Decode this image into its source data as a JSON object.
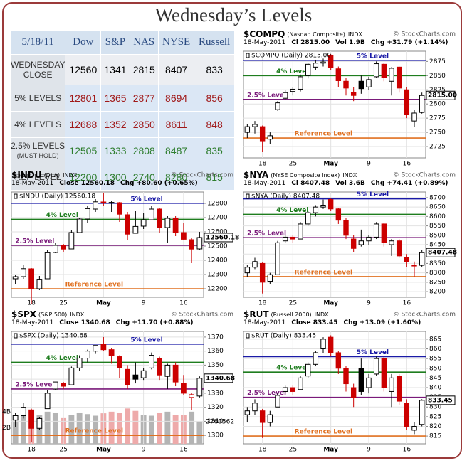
{
  "title": "Wednesday’s Levels",
  "table": {
    "header": [
      "5/18/11",
      "Dow",
      "S&P",
      "NAS",
      "NYSE",
      "Russell"
    ],
    "rows": [
      {
        "label": "WEDNESDAY CLOSE",
        "color": "#000000",
        "values": [
          "12560",
          "1341",
          "2815",
          "8407",
          "833"
        ]
      },
      {
        "label": "5% LEVELS",
        "color": "#a01818",
        "values": [
          "12801",
          "1365",
          "2877",
          "8694",
          "856"
        ]
      },
      {
        "label": "4% LEVELS",
        "color": "#a01818",
        "values": [
          "12688",
          "1352",
          "2850",
          "8611",
          "848"
        ]
      },
      {
        "label": "2.5% LEVELS",
        "note": "(MUST HOLD)",
        "color": "#2e7d2e",
        "values": [
          "12505",
          "1333",
          "2808",
          "8487",
          "835"
        ]
      },
      {
        "label": "REF LEVEL",
        "color": "#2e7d2e",
        "values": [
          "12200",
          "1300",
          "2740",
          "8280",
          "815"
        ]
      }
    ]
  },
  "chart_data": [
    {
      "type": "candlestick",
      "symbol": "$COMPQ",
      "name": "(Nasdaq Composite)",
      "exchange": "INDX",
      "source": "© StockCharts.com",
      "date": "18-May-2011",
      "stats": [
        "Cl 2815.00",
        "Vol 1.9B",
        "Chg +31.79 (+1.14%)"
      ],
      "legend": "$COMPQ (Daily) 2815.00",
      "last_label": "2815.00",
      "up_color": "#000000",
      "down_color": "#cc0000",
      "categories": [
        null,
        null,
        "18",
        null,
        null,
        null,
        "25",
        null,
        null,
        null,
        null,
        "May",
        null,
        null,
        null,
        null,
        "9",
        null,
        null,
        null,
        null,
        "16",
        null,
        null
      ],
      "ohlc": [
        [
          2750,
          2765,
          2740,
          2760
        ],
        [
          2760,
          2770,
          2748,
          2764
        ],
        [
          2760,
          2762,
          2715,
          2735
        ],
        [
          2738,
          2750,
          2730,
          2744
        ],
        [
          2790,
          2805,
          2788,
          2802
        ],
        [
          2810,
          2825,
          2808,
          2820
        ],
        [
          2822,
          2830,
          2815,
          2826
        ],
        [
          2826,
          2852,
          2822,
          2848
        ],
        [
          2850,
          2872,
          2845,
          2870
        ],
        [
          2865,
          2878,
          2860,
          2872
        ],
        [
          2872,
          2880,
          2866,
          2874
        ],
        [
          2885,
          2888,
          2860,
          2864
        ],
        [
          2862,
          2866,
          2830,
          2841
        ],
        [
          2840,
          2846,
          2815,
          2828
        ],
        [
          2820,
          2830,
          2805,
          2815
        ],
        [
          2840,
          2850,
          2818,
          2827
        ],
        [
          2830,
          2848,
          2825,
          2843
        ],
        [
          2848,
          2875,
          2846,
          2871
        ],
        [
          2870,
          2873,
          2840,
          2846
        ],
        [
          2840,
          2865,
          2815,
          2863
        ],
        [
          2865,
          2866,
          2820,
          2828
        ],
        [
          2825,
          2830,
          2775,
          2782
        ],
        [
          2770,
          2790,
          2760,
          2784
        ],
        [
          2785,
          2820,
          2783,
          2815
        ]
      ],
      "ylim": [
        2705,
        2893
      ],
      "yticks": [
        2725,
        2750,
        2775,
        2800,
        2825,
        2850,
        2875
      ],
      "levels": [
        {
          "name": "5% Level",
          "value": 2877,
          "color": "#1a1aa6"
        },
        {
          "name": "4% Level",
          "value": 2850,
          "color": "#1e7d1e"
        },
        {
          "name": "2.5% Level",
          "value": 2808,
          "color": "#7a1a7a"
        },
        {
          "name": "Reference Level",
          "value": 2740,
          "color": "#e07020"
        }
      ]
    },
    {
      "type": "candlestick",
      "symbol": "$INDU",
      "name": "(DJIA)",
      "exchange": "INDX",
      "source": "© StockCharts.com",
      "date": "18-May-2011",
      "stats": [
        "Close 12560.18",
        "Chg +80.60 (+0.65%)"
      ],
      "legend": "$INDU (Daily) 12560.18",
      "last_label": "12560.18",
      "up_color": "#000000",
      "down_color": "#cc0000",
      "categories": [
        null,
        null,
        "18",
        null,
        null,
        null,
        "25",
        null,
        null,
        null,
        null,
        "May",
        null,
        null,
        null,
        null,
        "9",
        null,
        null,
        null,
        null,
        "16",
        null,
        null
      ],
      "ohlc": [
        [
          12270,
          12300,
          12230,
          12285
        ],
        [
          12285,
          12370,
          12270,
          12341
        ],
        [
          12340,
          12345,
          12090,
          12202
        ],
        [
          12200,
          12290,
          12190,
          12267
        ],
        [
          12270,
          12470,
          12270,
          12453
        ],
        [
          12455,
          12520,
          12450,
          12505
        ],
        [
          12505,
          12515,
          12460,
          12479
        ],
        [
          12480,
          12610,
          12480,
          12595
        ],
        [
          12595,
          12700,
          12590,
          12690
        ],
        [
          12690,
          12780,
          12660,
          12763
        ],
        [
          12760,
          12830,
          12740,
          12811
        ],
        [
          12810,
          12876,
          12780,
          12807
        ],
        [
          12805,
          12820,
          12740,
          12807
        ],
        [
          12805,
          12810,
          12670,
          12724
        ],
        [
          12720,
          12740,
          12540,
          12584
        ],
        [
          12590,
          12750,
          12590,
          12638
        ],
        [
          12640,
          12730,
          12620,
          12685
        ],
        [
          12685,
          12780,
          12680,
          12760
        ],
        [
          12760,
          12770,
          12590,
          12630
        ],
        [
          12630,
          12710,
          12520,
          12695
        ],
        [
          12695,
          12710,
          12570,
          12596
        ],
        [
          12595,
          12660,
          12540,
          12548
        ],
        [
          12545,
          12560,
          12380,
          12479
        ],
        [
          12480,
          12600,
          12470,
          12560.18
        ]
      ],
      "ylim": [
        12140,
        12880
      ],
      "yticks": [
        12200,
        12300,
        12400,
        12500,
        12600,
        12700,
        12800
      ],
      "levels": [
        {
          "name": "5% Level",
          "value": 12801,
          "color": "#1a1aa6"
        },
        {
          "name": "4% Level",
          "value": 12688,
          "color": "#1e7d1e"
        },
        {
          "name": "2.5% Level",
          "value": 12505,
          "color": "#7a1a7a"
        },
        {
          "name": "Reference Level",
          "value": 12200,
          "color": "#e07020"
        }
      ]
    },
    {
      "type": "candlestick",
      "symbol": "$NYA",
      "name": "(NYSE Composite Index)",
      "exchange": "INDX",
      "source": "© StockCharts.com",
      "date": "18-May-2011",
      "stats": [
        "Cl 8407.48",
        "Vol 3.6B",
        "Chg +74.41 (+0.89%)"
      ],
      "legend": "$NYA (Daily) 8407.48",
      "last_label": "8407.48",
      "up_color": "#000000",
      "down_color": "#cc0000",
      "categories": [
        null,
        null,
        "18",
        null,
        null,
        null,
        "25",
        null,
        null,
        null,
        null,
        "May",
        null,
        null,
        null,
        null,
        "9",
        null,
        null,
        null,
        null,
        "16",
        null,
        null
      ],
      "ohlc": [
        [
          8300,
          8340,
          8280,
          8330
        ],
        [
          8330,
          8380,
          8320,
          8360
        ],
        [
          8350,
          8355,
          8190,
          8250
        ],
        [
          8255,
          8300,
          8240,
          8290
        ],
        [
          8290,
          8470,
          8290,
          8460
        ],
        [
          8470,
          8500,
          8460,
          8490
        ],
        [
          8490,
          8500,
          8460,
          8480
        ],
        [
          8480,
          8570,
          8480,
          8560
        ],
        [
          8560,
          8630,
          8550,
          8620
        ],
        [
          8620,
          8660,
          8600,
          8650
        ],
        [
          8650,
          8690,
          8640,
          8660
        ],
        [
          8690,
          8700,
          8630,
          8640
        ],
        [
          8640,
          8645,
          8560,
          8580
        ],
        [
          8580,
          8590,
          8480,
          8500
        ],
        [
          8480,
          8500,
          8410,
          8430
        ],
        [
          8450,
          8530,
          8440,
          8470
        ],
        [
          8470,
          8500,
          8450,
          8490
        ],
        [
          8490,
          8570,
          8480,
          8560
        ],
        [
          8560,
          8565,
          8440,
          8460
        ],
        [
          8450,
          8480,
          8390,
          8470
        ],
        [
          8470,
          8480,
          8380,
          8390
        ],
        [
          8380,
          8400,
          8330,
          8360
        ],
        [
          8340,
          8360,
          8280,
          8340
        ],
        [
          8340,
          8420,
          8330,
          8407.48
        ]
      ],
      "ylim": [
        8170,
        8730
      ],
      "yticks": [
        8200,
        8250,
        8300,
        8350,
        8400,
        8450,
        8500,
        8550,
        8600,
        8650,
        8700
      ],
      "levels": [
        {
          "name": "5% Level",
          "value": 8694,
          "color": "#1a1aa6"
        },
        {
          "name": "4% Level",
          "value": 8611,
          "color": "#1e7d1e"
        },
        {
          "name": "2.5% Level",
          "value": 8487,
          "color": "#7a1a7a"
        },
        {
          "name": "Reference Level",
          "value": 8280,
          "color": "#e07020"
        }
      ]
    },
    {
      "type": "candlestick",
      "symbol": "$SPX",
      "name": "(S&P 500)",
      "exchange": "INDX",
      "source": "© StockCharts.com",
      "date": "18-May-2011",
      "stats": [
        "Close 1340.68",
        "Chg +11.70 (+0.88%)"
      ],
      "legend": "$SPX (Daily) 1340.68",
      "last_label": "1340.68",
      "up_color": "#000000",
      "down_color": "#cc0000",
      "categories": [
        null,
        null,
        "18",
        null,
        null,
        null,
        "25",
        null,
        null,
        null,
        null,
        "May",
        null,
        null,
        null,
        null,
        "9",
        null,
        null,
        null,
        null,
        "16",
        null,
        null
      ],
      "ohlc": [
        [
          1311,
          1316,
          1306,
          1314
        ],
        [
          1314,
          1323,
          1312,
          1320
        ],
        [
          1318,
          1319,
          1295,
          1305
        ],
        [
          1305,
          1313,
          1304,
          1312
        ],
        [
          1319,
          1332,
          1319,
          1330
        ],
        [
          1333,
          1338,
          1332,
          1338
        ],
        [
          1337,
          1338,
          1333,
          1335
        ],
        [
          1336,
          1349,
          1336,
          1348
        ],
        [
          1348,
          1357,
          1346,
          1355
        ],
        [
          1355,
          1361,
          1352,
          1360
        ],
        [
          1360,
          1364,
          1358,
          1364
        ],
        [
          1365,
          1370,
          1360,
          1361
        ],
        [
          1361,
          1362,
          1351,
          1357
        ],
        [
          1356,
          1357,
          1341,
          1348
        ],
        [
          1347,
          1350,
          1333,
          1336
        ],
        [
          1343,
          1352,
          1337,
          1340
        ],
        [
          1341,
          1348,
          1339,
          1346
        ],
        [
          1348,
          1359,
          1347,
          1357
        ],
        [
          1355,
          1356,
          1339,
          1343
        ],
        [
          1342,
          1351,
          1333,
          1350
        ],
        [
          1350,
          1352,
          1335,
          1338
        ],
        [
          1337,
          1343,
          1329,
          1330
        ],
        [
          1327,
          1330,
          1318,
          1329
        ],
        [
          1328,
          1342,
          1327,
          1340.68
        ]
      ],
      "ylim": [
        1294,
        1374
      ],
      "yticks": [
        1300,
        1310,
        1320,
        1330,
        1340,
        1350,
        1360,
        1370
      ],
      "volume": {
        "values": [
          3500000,
          4200000,
          4300000,
          3600000,
          4000000,
          3900000,
          3200000,
          3600000,
          3900000,
          3700000,
          3500000,
          3800000,
          4000000,
          3900000,
          4400000,
          4100000,
          3600000,
          3500000,
          3900000,
          4000000,
          3600000,
          3600000,
          4000000,
          2760562
        ],
        "ylim": [
          0,
          14000000
        ],
        "ticks": [
          {
            "value": 2000000,
            "label": "2B"
          },
          {
            "value": 4000000,
            "label": "4B"
          }
        ],
        "up_color": "#b4b4b4",
        "down_color": "#eeaaaa"
      },
      "levels": [
        {
          "name": "5% Level",
          "value": 1365,
          "color": "#1a1aa6"
        },
        {
          "name": "4% Level",
          "value": 1352,
          "color": "#1e7d1e"
        },
        {
          "name": "2.5% Level",
          "value": 1333,
          "color": "#7a1a7a"
        },
        {
          "name": "Reference Level",
          "value": 1300,
          "color": "#e07020"
        }
      ]
    },
    {
      "type": "candlestick",
      "symbol": "$RUT",
      "name": "(Russell 2000)",
      "exchange": "INDX",
      "source": "© StockCharts.com",
      "date": "18-May-2011",
      "stats": [
        "Close 833.45",
        "Chg +13.09 (+1.60%)"
      ],
      "legend": "$RUT (Daily) 833.45",
      "last_label": "833.45",
      "up_color": "#000000",
      "down_color": "#cc0000",
      "categories": [
        null,
        null,
        "18",
        null,
        null,
        null,
        "25",
        null,
        null,
        null,
        null,
        "May",
        null,
        null,
        null,
        null,
        "9",
        null,
        null,
        null,
        null,
        "16",
        null,
        null
      ],
      "ohlc": [
        [
          826,
          830,
          822,
          828
        ],
        [
          828,
          834,
          826,
          832
        ],
        [
          828,
          829,
          814,
          822
        ],
        [
          822,
          828,
          820,
          826
        ],
        [
          830,
          837,
          830,
          836
        ],
        [
          838,
          841,
          837,
          840
        ],
        [
          840,
          841,
          836,
          838
        ],
        [
          839,
          846,
          839,
          845
        ],
        [
          846,
          853,
          845,
          852
        ],
        [
          852,
          859,
          851,
          858
        ],
        [
          860,
          866,
          858,
          865
        ],
        [
          866,
          867,
          856,
          858
        ],
        [
          858,
          859,
          847,
          850
        ],
        [
          850,
          851,
          838,
          842
        ],
        [
          840,
          842,
          830,
          835
        ],
        [
          850,
          855,
          836,
          838
        ],
        [
          840,
          847,
          837,
          845
        ],
        [
          847,
          856,
          846,
          855
        ],
        [
          855,
          856,
          838,
          840
        ],
        [
          838,
          847,
          830,
          845
        ],
        [
          846,
          847,
          831,
          833
        ],
        [
          832,
          834,
          818,
          820
        ],
        [
          818,
          822,
          816,
          820
        ],
        [
          821,
          834,
          820,
          833.45
        ]
      ],
      "ylim": [
        811,
        869
      ],
      "yticks": [
        815,
        820,
        825,
        830,
        835,
        840,
        845,
        850,
        855,
        860,
        865
      ],
      "levels": [
        {
          "name": "5% Level",
          "value": 856,
          "color": "#1a1aa6"
        },
        {
          "name": "4% Level",
          "value": 848,
          "color": "#1e7d1e"
        },
        {
          "name": "2.5% Level",
          "value": 835,
          "color": "#7a1a7a"
        },
        {
          "name": "Reference Level",
          "value": 815,
          "color": "#e07020"
        }
      ]
    }
  ]
}
